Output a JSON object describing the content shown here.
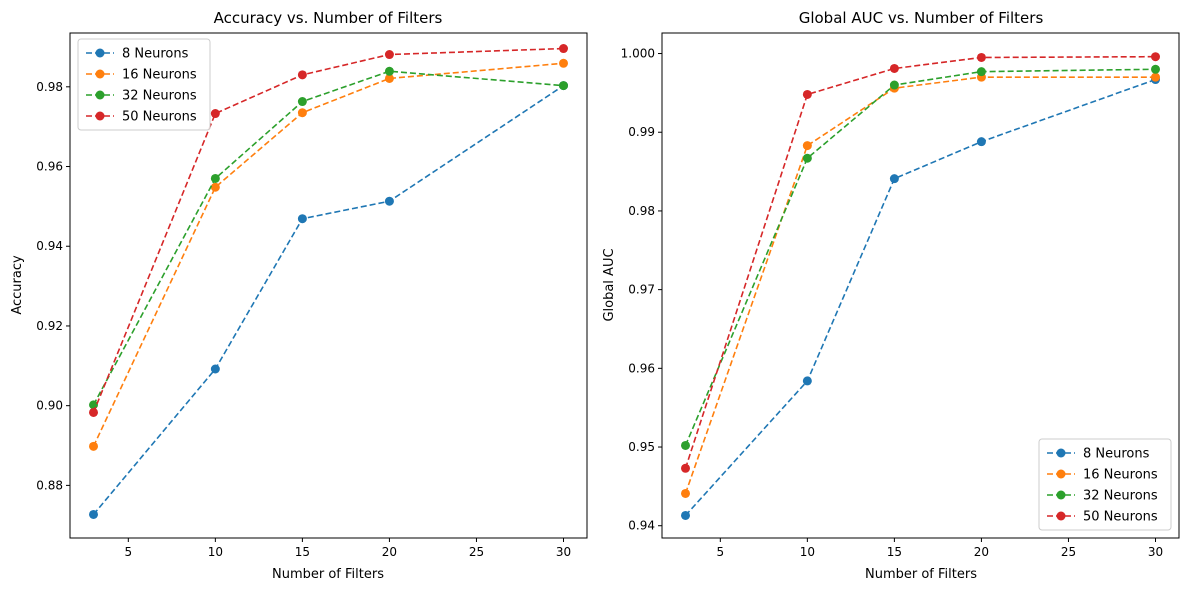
{
  "colors": {
    "8 Neurons": "#1f77b4",
    "16 Neurons": "#ff7f0e",
    "32 Neurons": "#2ca02c",
    "50 Neurons": "#d62728"
  },
  "chart_data": [
    {
      "type": "line",
      "title": "Accuracy vs. Number of Filters",
      "xlabel": "Number of Filters",
      "ylabel": "Accuracy",
      "x": [
        3,
        10,
        15,
        20,
        30
      ],
      "xlim": [
        1.65,
        31.35
      ],
      "ylim": [
        0.8668,
        0.9935
      ],
      "xticks": [
        5,
        10,
        15,
        20,
        25,
        30
      ],
      "xtick_labels": [
        "5",
        "10",
        "15",
        "20",
        "25",
        "30"
      ],
      "yticks": [
        0.88,
        0.9,
        0.92,
        0.94,
        0.96,
        0.98
      ],
      "ytick_labels": [
        "0.88",
        "0.90",
        "0.92",
        "0.94",
        "0.96",
        "0.98"
      ],
      "legend_loc": "upper-left",
      "series": [
        {
          "name": "8 Neurons",
          "values": [
            0.8727,
            0.9092,
            0.9469,
            0.9513,
            0.9803
          ]
        },
        {
          "name": "16 Neurons",
          "values": [
            0.8898,
            0.9548,
            0.9735,
            0.9821,
            0.9859
          ]
        },
        {
          "name": "32 Neurons",
          "values": [
            0.9002,
            0.957,
            0.9763,
            0.9839,
            0.9803
          ]
        },
        {
          "name": "50 Neurons",
          "values": [
            0.8983,
            0.9733,
            0.983,
            0.9881,
            0.9896
          ]
        }
      ]
    },
    {
      "type": "line",
      "title": "Global AUC vs. Number of Filters",
      "xlabel": "Number of Filters",
      "ylabel": "Global AUC",
      "x": [
        3,
        10,
        15,
        20,
        30
      ],
      "xlim": [
        1.65,
        31.35
      ],
      "ylim": [
        0.93844,
        1.00261
      ],
      "xticks": [
        5,
        10,
        15,
        20,
        25,
        30
      ],
      "xtick_labels": [
        "5",
        "10",
        "15",
        "20",
        "25",
        "30"
      ],
      "yticks": [
        0.94,
        0.95,
        0.96,
        0.97,
        0.98,
        0.99,
        1.0
      ],
      "ytick_labels": [
        "0.94",
        "0.95",
        "0.96",
        "0.97",
        "0.98",
        "0.99",
        "1.000"
      ],
      "legend_loc": "lower-right",
      "series": [
        {
          "name": "8 Neurons",
          "values": [
            0.9413,
            0.9584,
            0.9841,
            0.9888,
            0.9967
          ]
        },
        {
          "name": "16 Neurons",
          "values": [
            0.9441,
            0.9883,
            0.9956,
            0.997,
            0.997
          ]
        },
        {
          "name": "32 Neurons",
          "values": [
            0.9502,
            0.9867,
            0.996,
            0.9977,
            0.998
          ]
        },
        {
          "name": "50 Neurons",
          "values": [
            0.9473,
            0.9948,
            0.9981,
            0.9995,
            0.9996
          ]
        }
      ]
    }
  ]
}
